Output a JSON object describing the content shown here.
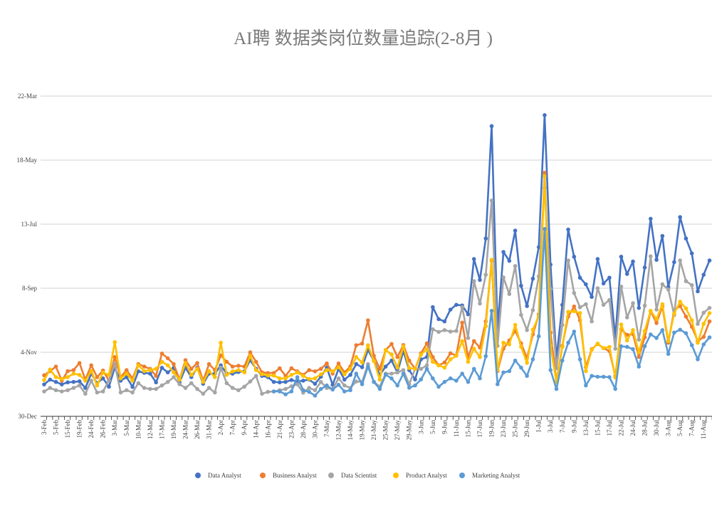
{
  "chart_data": {
    "type": "line",
    "title": "AI聘 数据类岗位数量追踪(2-8月 )",
    "xlabel": "",
    "ylabel": "",
    "ylim": [
      0,
      1545
    ],
    "yticks": [
      0,
      309,
      618,
      927,
      1236,
      1545
    ],
    "ytick_labels": [
      "30-Dec",
      "4-Nov",
      "8-Sep",
      "13-Jul",
      "18-May",
      "22-Mar"
    ],
    "x_tick_labels": [
      "3-Feb",
      "5-Feb",
      "15-Feb",
      "19-Feb",
      "24-Feb",
      "26-Feb",
      "3-Mar",
      "5-Mar",
      "10-Mar",
      "12-Mar",
      "17-Mar",
      "19-Mar",
      "24-Mar",
      "26-Mar",
      "31-Mar",
      "2-Apr",
      "7-Apr",
      "9-Apr",
      "14-Apr",
      "16-Apr",
      "21-Apr",
      "23-Apr",
      "28-Apr",
      "30-Apr",
      "7-May",
      "12-May",
      "14-May",
      "19-May",
      "21-May",
      "25-May",
      "27-May",
      "29-May",
      "3-Jun",
      "5-Jun",
      "9-Jun",
      "11-Jun",
      "15-Jun",
      "17-Jun",
      "19-Jun",
      "23-Jun",
      "25-Jun",
      "29-Jun",
      "1-Jul",
      "3-Jul",
      "7-Jul",
      "9-Jul",
      "13-Jul",
      "15-Jul",
      "17-Jul",
      "22-Jul",
      "24-Jul",
      "28-Jul",
      "30-Jul",
      "3-Aug",
      "5-Aug",
      "7-Aug",
      "11-Aug"
    ],
    "x_tick_every": 2,
    "grid": "horizontal",
    "legend_position": "bottom",
    "markers": "circle",
    "series": [
      {
        "name": "Data Analyst",
        "color": "#4472C4",
        "values": [
          154,
          177,
          166,
          154,
          164,
          166,
          169,
          137,
          206,
          160,
          183,
          143,
          234,
          172,
          189,
          142,
          217,
          210,
          206,
          164,
          234,
          212,
          234,
          164,
          234,
          189,
          234,
          157,
          206,
          206,
          246,
          206,
          206,
          214,
          217,
          271,
          229,
          195,
          189,
          166,
          164,
          166,
          175,
          168,
          172,
          177,
          157,
          191,
          235,
          152,
          229,
          177,
          200,
          252,
          237,
          320,
          269,
          200,
          240,
          269,
          212,
          315,
          223,
          178,
          275,
          286,
          527,
          469,
          458,
          515,
          538,
          535,
          492,
          759,
          658,
          858,
          1400,
          424,
          793,
          750,
          896,
          630,
          532,
          664,
          816,
          1453,
          732,
          278,
          538,
          901,
          770,
          669,
          637,
          576,
          759,
          641,
          669,
          378,
          770,
          687,
          747,
          523,
          718,
          953,
          755,
          870,
          624,
          744,
          961,
          858,
          786,
          603,
          683,
          752
        ]
      },
      {
        "name": "Business Analyst",
        "color": "#ED7D31",
        "values": [
          198,
          218,
          240,
          172,
          218,
          223,
          257,
          177,
          246,
          189,
          221,
          172,
          286,
          189,
          223,
          183,
          252,
          240,
          229,
          195,
          303,
          280,
          252,
          177,
          271,
          229,
          257,
          172,
          252,
          223,
          294,
          263,
          240,
          244,
          240,
          309,
          263,
          212,
          209,
          209,
          232,
          195,
          232,
          217,
          200,
          223,
          217,
          229,
          255,
          206,
          255,
          212,
          240,
          343,
          351,
          463,
          292,
          229,
          320,
          349,
          286,
          344,
          269,
          229,
          304,
          352,
          286,
          246,
          260,
          304,
          294,
          452,
          286,
          363,
          332,
          458,
          750,
          218,
          326,
          366,
          412,
          352,
          281,
          395,
          492,
          1175,
          404,
          168,
          340,
          481,
          530,
          464,
          237,
          324,
          349,
          329,
          315,
          195,
          420,
          393,
          397,
          286,
          381,
          507,
          450,
          530,
          355,
          512,
          532,
          481,
          432,
          363,
          383,
          458
        ]
      },
      {
        "name": "Data Scientist",
        "color": "#A5A5A5",
        "values": [
          120,
          137,
          126,
          120,
          126,
          137,
          149,
          109,
          172,
          115,
          120,
          172,
          252,
          115,
          126,
          115,
          160,
          137,
          132,
          132,
          149,
          166,
          189,
          155,
          137,
          160,
          132,
          109,
          137,
          115,
          235,
          160,
          137,
          126,
          143,
          168,
          195,
          109,
          118,
          120,
          126,
          132,
          145,
          155,
          114,
          137,
          126,
          166,
          137,
          132,
          183,
          149,
          137,
          168,
          166,
          252,
          166,
          143,
          206,
          206,
          212,
          223,
          155,
          229,
          229,
          246,
          420,
          407,
          416,
          409,
          412,
          527,
          378,
          652,
          544,
          683,
          1041,
          340,
          670,
          590,
          725,
          489,
          416,
          512,
          675,
          1102,
          615,
          232,
          441,
          752,
          595,
          526,
          541,
          458,
          618,
          538,
          561,
          326,
          626,
          477,
          546,
          370,
          534,
          772,
          515,
          637,
          612,
          489,
          752,
          652,
          633,
          446,
          500,
          523
        ]
      },
      {
        "name": "Product Analyst",
        "color": "#FFC000",
        "values": [
          175,
          226,
          189,
          180,
          189,
          206,
          200,
          172,
          218,
          149,
          212,
          200,
          358,
          183,
          206,
          172,
          246,
          218,
          223,
          229,
          263,
          246,
          212,
          177,
          257,
          200,
          229,
          166,
          218,
          189,
          355,
          200,
          217,
          223,
          212,
          292,
          223,
          203,
          197,
          197,
          183,
          183,
          200,
          212,
          195,
          180,
          183,
          203,
          223,
          217,
          237,
          203,
          229,
          286,
          260,
          343,
          267,
          177,
          320,
          298,
          235,
          338,
          233,
          229,
          298,
          324,
          263,
          246,
          235,
          275,
          292,
          363,
          263,
          326,
          286,
          435,
          755,
          223,
          355,
          347,
          441,
          336,
          258,
          418,
          484,
          1159,
          340,
          164,
          335,
          504,
          507,
          498,
          218,
          321,
          351,
          329,
          335,
          187,
          443,
          366,
          416,
          309,
          412,
          509,
          469,
          541,
          363,
          496,
          553,
          521,
          463,
          355,
          446,
          498
        ]
      },
      {
        "name": "Marketing Analyst",
        "color": "#5B9BD5",
        "values": [
          null,
          null,
          null,
          null,
          null,
          null,
          null,
          null,
          null,
          null,
          null,
          null,
          null,
          null,
          null,
          null,
          null,
          null,
          null,
          null,
          null,
          null,
          null,
          null,
          null,
          null,
          null,
          null,
          null,
          null,
          null,
          null,
          null,
          null,
          null,
          null,
          null,
          null,
          null,
          120,
          120,
          106,
          120,
          189,
          126,
          118,
          100,
          132,
          149,
          129,
          152,
          120,
          126,
          206,
          155,
          240,
          166,
          132,
          201,
          183,
          149,
          206,
          138,
          149,
          178,
          229,
          183,
          143,
          166,
          183,
          172,
          206,
          166,
          229,
          183,
          290,
          509,
          155,
          212,
          218,
          269,
          235,
          195,
          275,
          386,
          904,
          223,
          132,
          269,
          355,
          409,
          275,
          149,
          195,
          191,
          191,
          189,
          132,
          338,
          335,
          324,
          240,
          338,
          395,
          378,
          416,
          301,
          404,
          418,
          401,
          343,
          275,
          347,
          381
        ]
      }
    ]
  }
}
